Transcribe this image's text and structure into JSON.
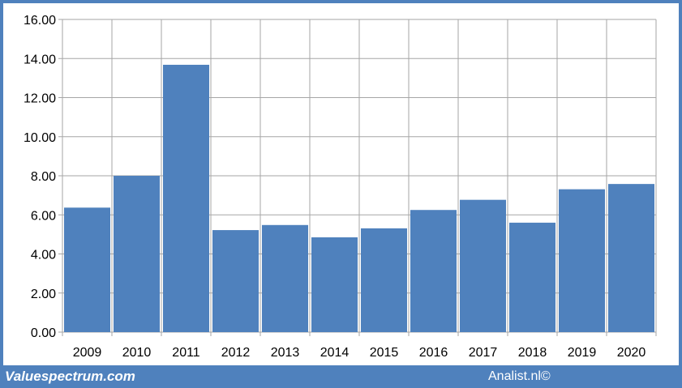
{
  "footer": {
    "brand": "Valuespectrum.com",
    "credit": "Analist.nl©"
  },
  "colors": {
    "bar": "#4f81bd",
    "frame": "#4f81bd",
    "grid": "#a6a6a6"
  },
  "chart_data": {
    "type": "bar",
    "categories": [
      "2009",
      "2010",
      "2011",
      "2012",
      "2013",
      "2014",
      "2015",
      "2016",
      "2017",
      "2018",
      "2019",
      "2020"
    ],
    "values": [
      6.37,
      8.0,
      13.68,
      5.22,
      5.48,
      4.85,
      5.31,
      6.25,
      6.77,
      5.6,
      7.31,
      7.58
    ],
    "title": "",
    "xlabel": "",
    "ylabel": "",
    "ylim": [
      0,
      16
    ],
    "yticks": [
      "0.00",
      "2.00",
      "4.00",
      "6.00",
      "8.00",
      "10.00",
      "12.00",
      "14.00",
      "16.00"
    ],
    "grid": true,
    "legend": "none"
  }
}
